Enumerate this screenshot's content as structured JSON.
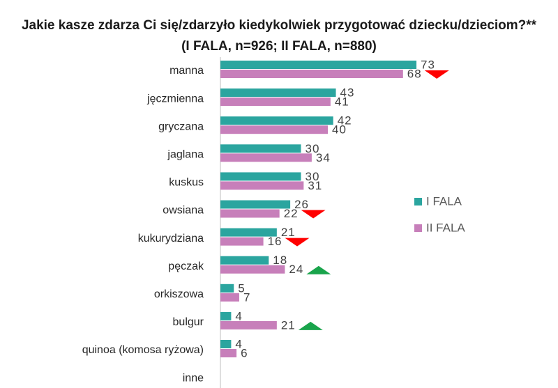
{
  "chart_data": {
    "type": "bar",
    "orientation": "horizontal",
    "title": "Jakie kasze zdarza Ci się/zdarzyło kiedykolwiek przygotować dziecku/dzieciom?**",
    "subtitle": "(I FALA, n=926; II FALA, n=880)",
    "categories": [
      "manna",
      "jęczmienna",
      "gryczana",
      "jaglana",
      "kuskus",
      "owsiana",
      "kukurydziana",
      "pęczak",
      "orkiszowa",
      "bulgur",
      "quinoa (komosa ryżowa)",
      "inne"
    ],
    "series": [
      {
        "name": "I FALA",
        "color": "#2ba59f",
        "values": [
          73,
          43,
          42,
          30,
          30,
          26,
          21,
          18,
          5,
          4,
          4,
          null
        ]
      },
      {
        "name": "II FALA",
        "color": "#c77fba",
        "values": [
          68,
          41,
          40,
          34,
          31,
          22,
          16,
          24,
          7,
          21,
          6,
          null
        ]
      }
    ],
    "change": [
      "down",
      null,
      null,
      null,
      null,
      "down",
      "down",
      "up",
      null,
      "up",
      null,
      null
    ],
    "change_colors": {
      "down": "#ff0000",
      "up": "#19a44b"
    },
    "xlim": [
      0,
      100
    ],
    "legend": "right"
  }
}
